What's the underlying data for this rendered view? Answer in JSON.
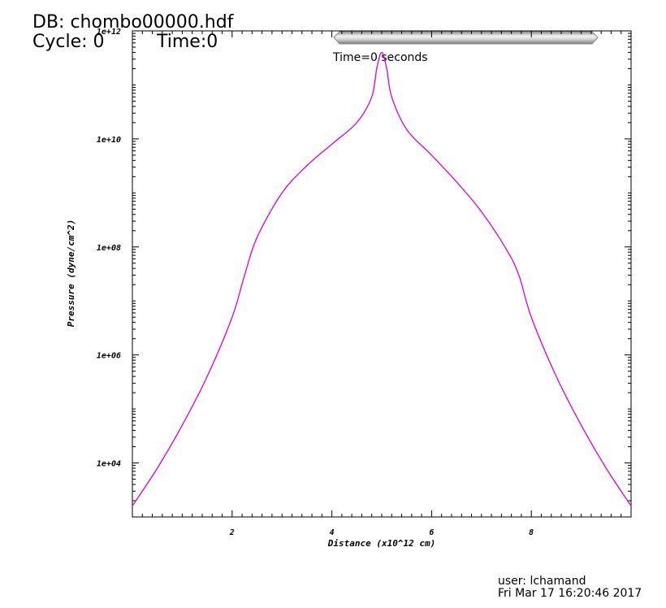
{
  "header": {
    "db_label": "DB: chombo00000.hdf",
    "cycle_label": "Cycle: 0",
    "time_label": "Time:0"
  },
  "time_slider": {
    "label": "Time=0 seconds",
    "progress": 0.0
  },
  "footer": {
    "user": "user: lchamand",
    "date": "Fri Mar 17 16:20:46 2017"
  },
  "chart_data": {
    "type": "line",
    "title": "",
    "xlabel": "Distance (x10^12 cm)",
    "ylabel": "Pressure (dyne/cm^2)",
    "xlim": [
      0,
      10
    ],
    "ylim": [
      1000,
      1000000000000
    ],
    "y_scale": "log",
    "grid": false,
    "x_ticks": [
      2,
      4,
      6,
      8
    ],
    "x_tick_labels": [
      "2",
      "4",
      "6",
      "8"
    ],
    "y_ticks": [
      10000,
      1000000,
      100000000,
      10000000000,
      1000000000000
    ],
    "y_tick_labels": [
      "1e+04",
      "1e+06",
      "1e+08",
      "1e+10",
      "1e+12"
    ],
    "line_color": "#dd00dd",
    "series": [
      {
        "x": [
          0,
          0.5,
          1.0,
          1.5,
          2.0,
          2.25,
          2.5,
          3.0,
          3.5,
          4.0,
          4.5,
          4.8,
          4.9,
          5.0,
          5.1,
          5.2,
          5.5,
          6.0,
          6.5,
          7.0,
          7.5,
          7.75,
          8.0,
          8.5,
          9.0,
          9.5,
          10.0
        ],
        "y": [
          1600,
          8000,
          50000,
          400000,
          5000000,
          30000000,
          150000000,
          1000000000,
          3200000000,
          8000000000,
          20000000000,
          60000000000,
          200000000000,
          400000000000,
          200000000000,
          60000000000,
          15000000000,
          5000000000,
          1600000000,
          450000000,
          90000000,
          30000000,
          5000000,
          400000,
          50000,
          8000,
          1600
        ]
      }
    ]
  }
}
